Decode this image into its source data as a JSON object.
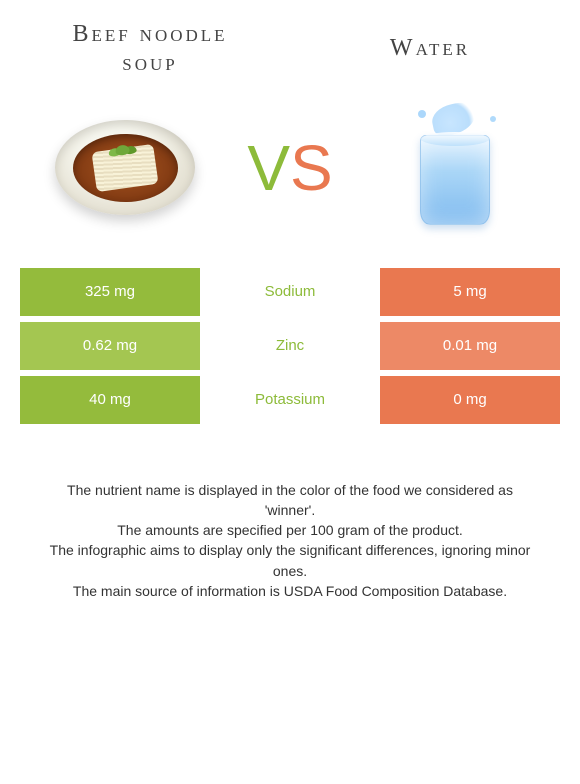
{
  "header": {
    "left_title": "Beef noodle soup",
    "right_title": "Water"
  },
  "vs": {
    "v": "V",
    "s": "S"
  },
  "colors": {
    "left_odd": "#94bb3c",
    "left_even": "#a4c651",
    "right_odd": "#e97850",
    "right_even": "#ed8966",
    "mid_left": "#8dbb3a",
    "mid_right": "#e97850"
  },
  "rows": [
    {
      "left": "325 mg",
      "mid": "Sodium",
      "right": "5 mg",
      "mid_color": "left"
    },
    {
      "left": "0.62 mg",
      "mid": "Zinc",
      "right": "0.01 mg",
      "mid_color": "left"
    },
    {
      "left": "40 mg",
      "mid": "Potassium",
      "right": "0 mg",
      "mid_color": "left"
    }
  ],
  "footer": {
    "line1": "The nutrient name is displayed in the color of the food we considered as 'winner'.",
    "line2": "The amounts are specified per 100 gram of the product.",
    "line3": "The infographic aims to display only the significant differences, ignoring minor ones.",
    "line4": "The main source of information is USDA Food Composition Database."
  }
}
